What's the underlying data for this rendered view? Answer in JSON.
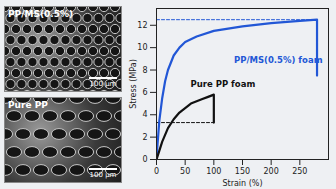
{
  "chart_data": {
    "type": "line",
    "x_label": "Strain (%)",
    "y_label": "Stress (MPa)",
    "xlim": [
      0,
      300
    ],
    "xticks": [
      0,
      50,
      100,
      150,
      200,
      250
    ],
    "ylim": [
      0,
      13.5
    ],
    "yticks": [
      0,
      2,
      4,
      6,
      8,
      10,
      12
    ],
    "grid": false,
    "series": [
      {
        "name": "PP/MS(0.5%) foam",
        "color": "#2257d6",
        "x": [
          0,
          2,
          5,
          10,
          15,
          20,
          30,
          40,
          50,
          70,
          100,
          150,
          200,
          250,
          280,
          280
        ],
        "values": [
          0,
          1.5,
          3.5,
          5.5,
          7,
          8,
          9.3,
          10,
          10.5,
          11,
          11.5,
          11.9,
          12.2,
          12.4,
          12.5,
          7.5
        ]
      },
      {
        "name": "Pure PP foam",
        "color": "#111111",
        "x": [
          0,
          5,
          10,
          20,
          30,
          40,
          50,
          60,
          70,
          80,
          90,
          100,
          100
        ],
        "values": [
          0,
          0.8,
          1.6,
          2.8,
          3.6,
          4.2,
          4.6,
          5,
          5.2,
          5.4,
          5.6,
          5.8,
          3.3
        ]
      }
    ],
    "reference_lines": [
      {
        "y": 12.5,
        "x": [
          0,
          280
        ],
        "color": "#2257d6",
        "line_style": "dashed"
      },
      {
        "y": 3.3,
        "x": [
          0,
          100
        ],
        "color": "#111111",
        "line_style": "dashed"
      }
    ]
  },
  "images": [
    {
      "label": "PP/MS(0.5%)",
      "scale_bar": "100 μm"
    },
    {
      "label": "Pure PP",
      "scale_bar": "100 μm"
    }
  ]
}
